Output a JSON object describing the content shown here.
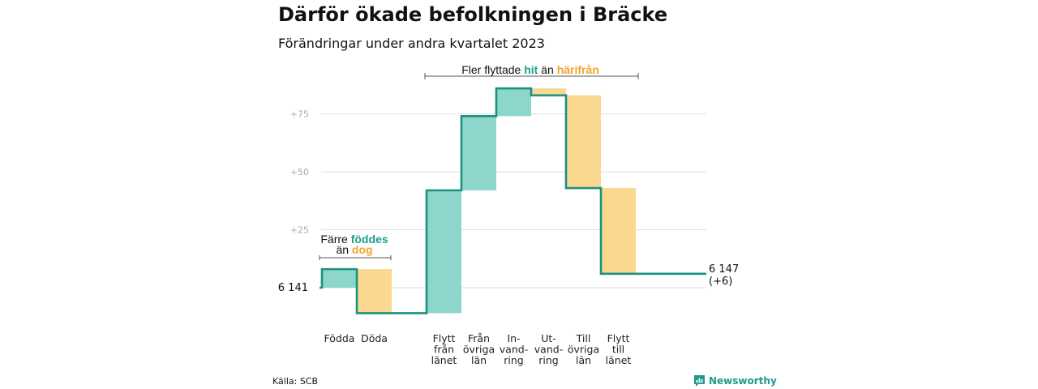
{
  "title": "Därför ökade befolkningen i Bräcke",
  "subtitle": "Förändringar under andra kvartalet 2023",
  "source": "Källa: SCB",
  "brand": "Newsworthy",
  "colors": {
    "increase": "#8cd6cc",
    "decrease": "#fad890",
    "line": "#1b917f",
    "teal_text": "#1f9e8c",
    "orange_text": "#efa52a",
    "grid": "#dddddd",
    "tick": "#aaaaaa"
  },
  "annotations": {
    "births": {
      "line1": "Färre",
      "teal": "föddes",
      "line2": "än",
      "orange": "dog"
    },
    "migration": {
      "prefix": "Fler flyttade",
      "teal": "hit",
      "middle": "än",
      "orange": "härifrån"
    }
  },
  "chart_data": {
    "type": "waterfall",
    "title": "Därför ökade befolkningen i Bräcke",
    "subtitle": "Förändringar under andra kvartalet 2023",
    "start": {
      "label": "6  141",
      "value": 0
    },
    "end": {
      "label": "6 147",
      "change_label": "(+6)",
      "value": 6
    },
    "y_ticks": [
      {
        "value": 25,
        "label": "+25"
      },
      {
        "value": 50,
        "label": "+50"
      },
      {
        "value": 75,
        "label": "+75"
      }
    ],
    "ylim": [
      -15,
      95
    ],
    "grid": true,
    "categories": [
      {
        "lines": [
          "Födda"
        ],
        "from": 0,
        "to": 8
      },
      {
        "lines": [
          "Döda"
        ],
        "from": 8,
        "to": -11
      },
      {
        "lines": [
          "Flytt",
          "från",
          "länet"
        ],
        "from": -11,
        "to": 42
      },
      {
        "lines": [
          "Från",
          "övriga",
          "län"
        ],
        "from": 42,
        "to": 74
      },
      {
        "lines": [
          "In-",
          "vand-",
          "ring"
        ],
        "from": 74,
        "to": 86
      },
      {
        "lines": [
          "Ut-",
          "vand-",
          "ring"
        ],
        "from": 86,
        "to": 83
      },
      {
        "lines": [
          "Till",
          "övriga",
          "län"
        ],
        "from": 83,
        "to": 43
      },
      {
        "lines": [
          "Flytt",
          "till",
          "länet"
        ],
        "from": 43,
        "to": 6
      }
    ]
  }
}
